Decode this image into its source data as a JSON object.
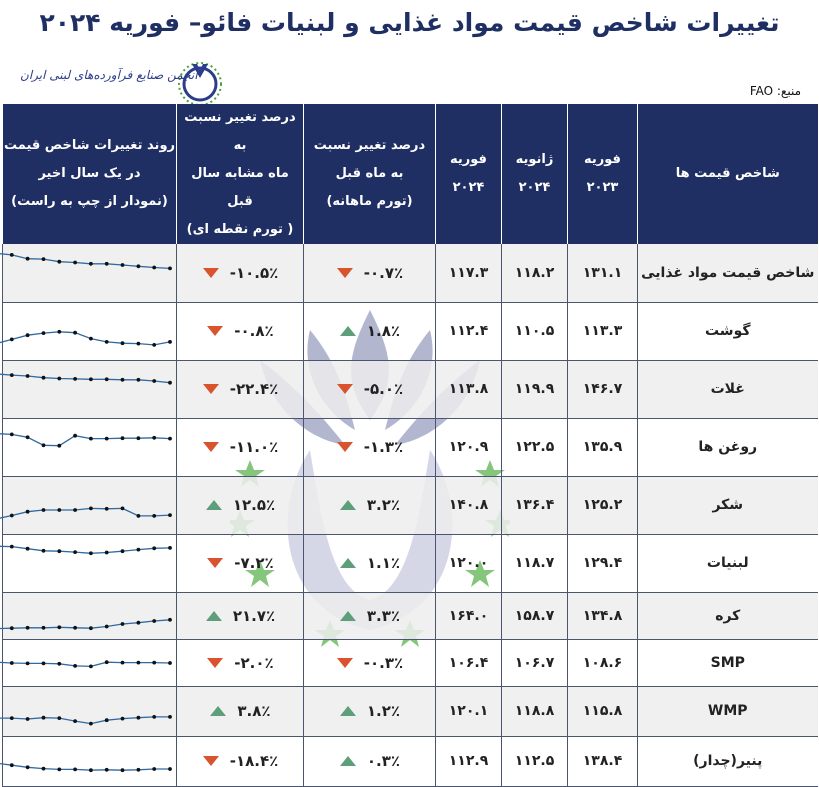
{
  "title": "تغییرات شاخص قیمت مواد غذایی و لبنیات فائو– فوریه ۲۰۲۴",
  "logo_text": "انجمن صنایع فرآورده‌های لبنی ایران",
  "source": "منبع: FAO",
  "headers": [
    "شاخص قیمت ها",
    "فوریه\n۲۰۲۳",
    "ژانویه\n۲۰۲۴",
    "فوریه\n۲۰۲۴",
    "درصد تغییر نسبت\nبه ماه قبل\n(تورم ماهانه)",
    "درصد تغییر نسبت به\nماه مشابه سال قبل\n( تورم نقطه ای)",
    "روند تغییرات شاخص قیمت\nدر یک سال اخیر\n(نمودار از چپ به راست)"
  ],
  "colors": {
    "header_bg": "#1f2f63",
    "up": "#5e9e7a",
    "down": "#d9542c",
    "sparkline": "#2e6aa3"
  },
  "chart_data": {
    "type": "table",
    "rows": [
      {
        "name": "شاخص قیمت مواد غذایی",
        "feb2023": "۱۳۱.۱",
        "jan2024": "۱۱۸.۲",
        "feb2024": "۱۱۷.۳",
        "mom": "-۰.۷٪",
        "mom_dir": "down",
        "yoy": "-۱۰.۵٪",
        "yoy_dir": "down",
        "trend": [
          97,
          93,
          84,
          83,
          77,
          75,
          72,
          72,
          69,
          66,
          63,
          61
        ],
        "shaded": true
      },
      {
        "name": "گوشت",
        "feb2023": "۱۱۳.۳",
        "jan2024": "۱۱۰.۵",
        "feb2024": "۱۱۲.۴",
        "mom": "۱.۸٪",
        "mom_dir": "up",
        "yoy": "-۰.۸٪",
        "yoy_dir": "down",
        "trend": [
          20,
          30,
          40,
          45,
          48,
          46,
          32,
          24,
          21,
          20,
          17,
          24
        ],
        "shaded": false
      },
      {
        "name": "غلات",
        "feb2023": "۱۴۶.۷",
        "jan2024": "۱۱۹.۹",
        "feb2024": "۱۱۳.۸",
        "mom": "-۵.۰٪",
        "mom_dir": "down",
        "yoy": "-۲۲.۴٪",
        "yoy_dir": "down",
        "trend": [
          86,
          83,
          81,
          77,
          75,
          74,
          73,
          73,
          72,
          72,
          69,
          65
        ],
        "shaded": true
      },
      {
        "name": "روغن ها",
        "feb2023": "۱۳۵.۹",
        "jan2024": "۱۲۲.۵",
        "feb2024": "۱۲۰.۹",
        "mom": "-۱.۳٪",
        "mom_dir": "down",
        "yoy": "-۱۱.۰٪",
        "yoy_dir": "down",
        "trend": [
          82,
          80,
          73,
          54,
          53,
          77,
          70,
          70,
          71,
          71,
          72,
          70
        ],
        "shaded": false
      },
      {
        "name": "شکر",
        "feb2023": "۱۲۵.۲",
        "jan2024": "۱۳۶.۴",
        "feb2024": "۱۴۰.۸",
        "mom": "۳.۲٪",
        "mom_dir": "up",
        "yoy": "۱۲.۵٪",
        "yoy_dir": "up",
        "trend": [
          17,
          25,
          34,
          38,
          38,
          38,
          42,
          41,
          42,
          24,
          24,
          26
        ],
        "shaded": true
      },
      {
        "name": "لبنیات",
        "feb2023": "۱۲۹.۴",
        "jan2024": "۱۱۸.۷",
        "feb2024": "۱۲۰.۰",
        "mom": "۱.۱٪",
        "mom_dir": "up",
        "yoy": "-۷.۲٪",
        "yoy_dir": "down",
        "trend": [
          90,
          89,
          84,
          79,
          78,
          76,
          73,
          75,
          78,
          82,
          85,
          86
        ],
        "shaded": false
      },
      {
        "name": "کره",
        "feb2023": "۱۳۴.۸",
        "jan2024": "۱۵۸.۷",
        "feb2024": "۱۶۴.۰",
        "mom": "۳.۳٪",
        "mom_dir": "up",
        "yoy": "۲۱.۷٪",
        "yoy_dir": "up",
        "trend": [
          20,
          21,
          22,
          22,
          23,
          22,
          21,
          25,
          31,
          34,
          38,
          41
        ],
        "shaded": true
      },
      {
        "name": "SMP",
        "feb2023": "۱۰۸.۶",
        "jan2024": "۱۰۶.۷",
        "feb2024": "۱۰۶.۴",
        "mom": "-۰.۳٪",
        "mom_dir": "down",
        "yoy": "-۲.۰٪",
        "yoy_dir": "down",
        "trend": [
          52,
          50,
          49,
          49,
          48,
          43,
          42,
          52,
          51,
          51,
          51,
          50
        ],
        "shaded": false
      },
      {
        "name": "WMP",
        "feb2023": "۱۱۵.۸",
        "jan2024": "۱۱۸.۸",
        "feb2024": "۱۲۰.۱",
        "mom": "۱.۲٪",
        "mom_dir": "up",
        "yoy": "۳.۸٪",
        "yoy_dir": "up",
        "trend": [
          33,
          33,
          31,
          34,
          33,
          26,
          20,
          28,
          32,
          34,
          36,
          36
        ],
        "shaded": true
      },
      {
        "name": "پنیر(چدار)",
        "feb2023": "۱۳۸.۴",
        "jan2024": "۱۱۲.۵",
        "feb2024": "۱۱۲.۹",
        "mom": "۰.۳٪",
        "mom_dir": "up",
        "yoy": "-۱۸.۴٪",
        "yoy_dir": "down",
        "trend": [
          45,
          40,
          35,
          32,
          30,
          30,
          28,
          29,
          28,
          29,
          31,
          31
        ],
        "shaded": false
      }
    ]
  }
}
